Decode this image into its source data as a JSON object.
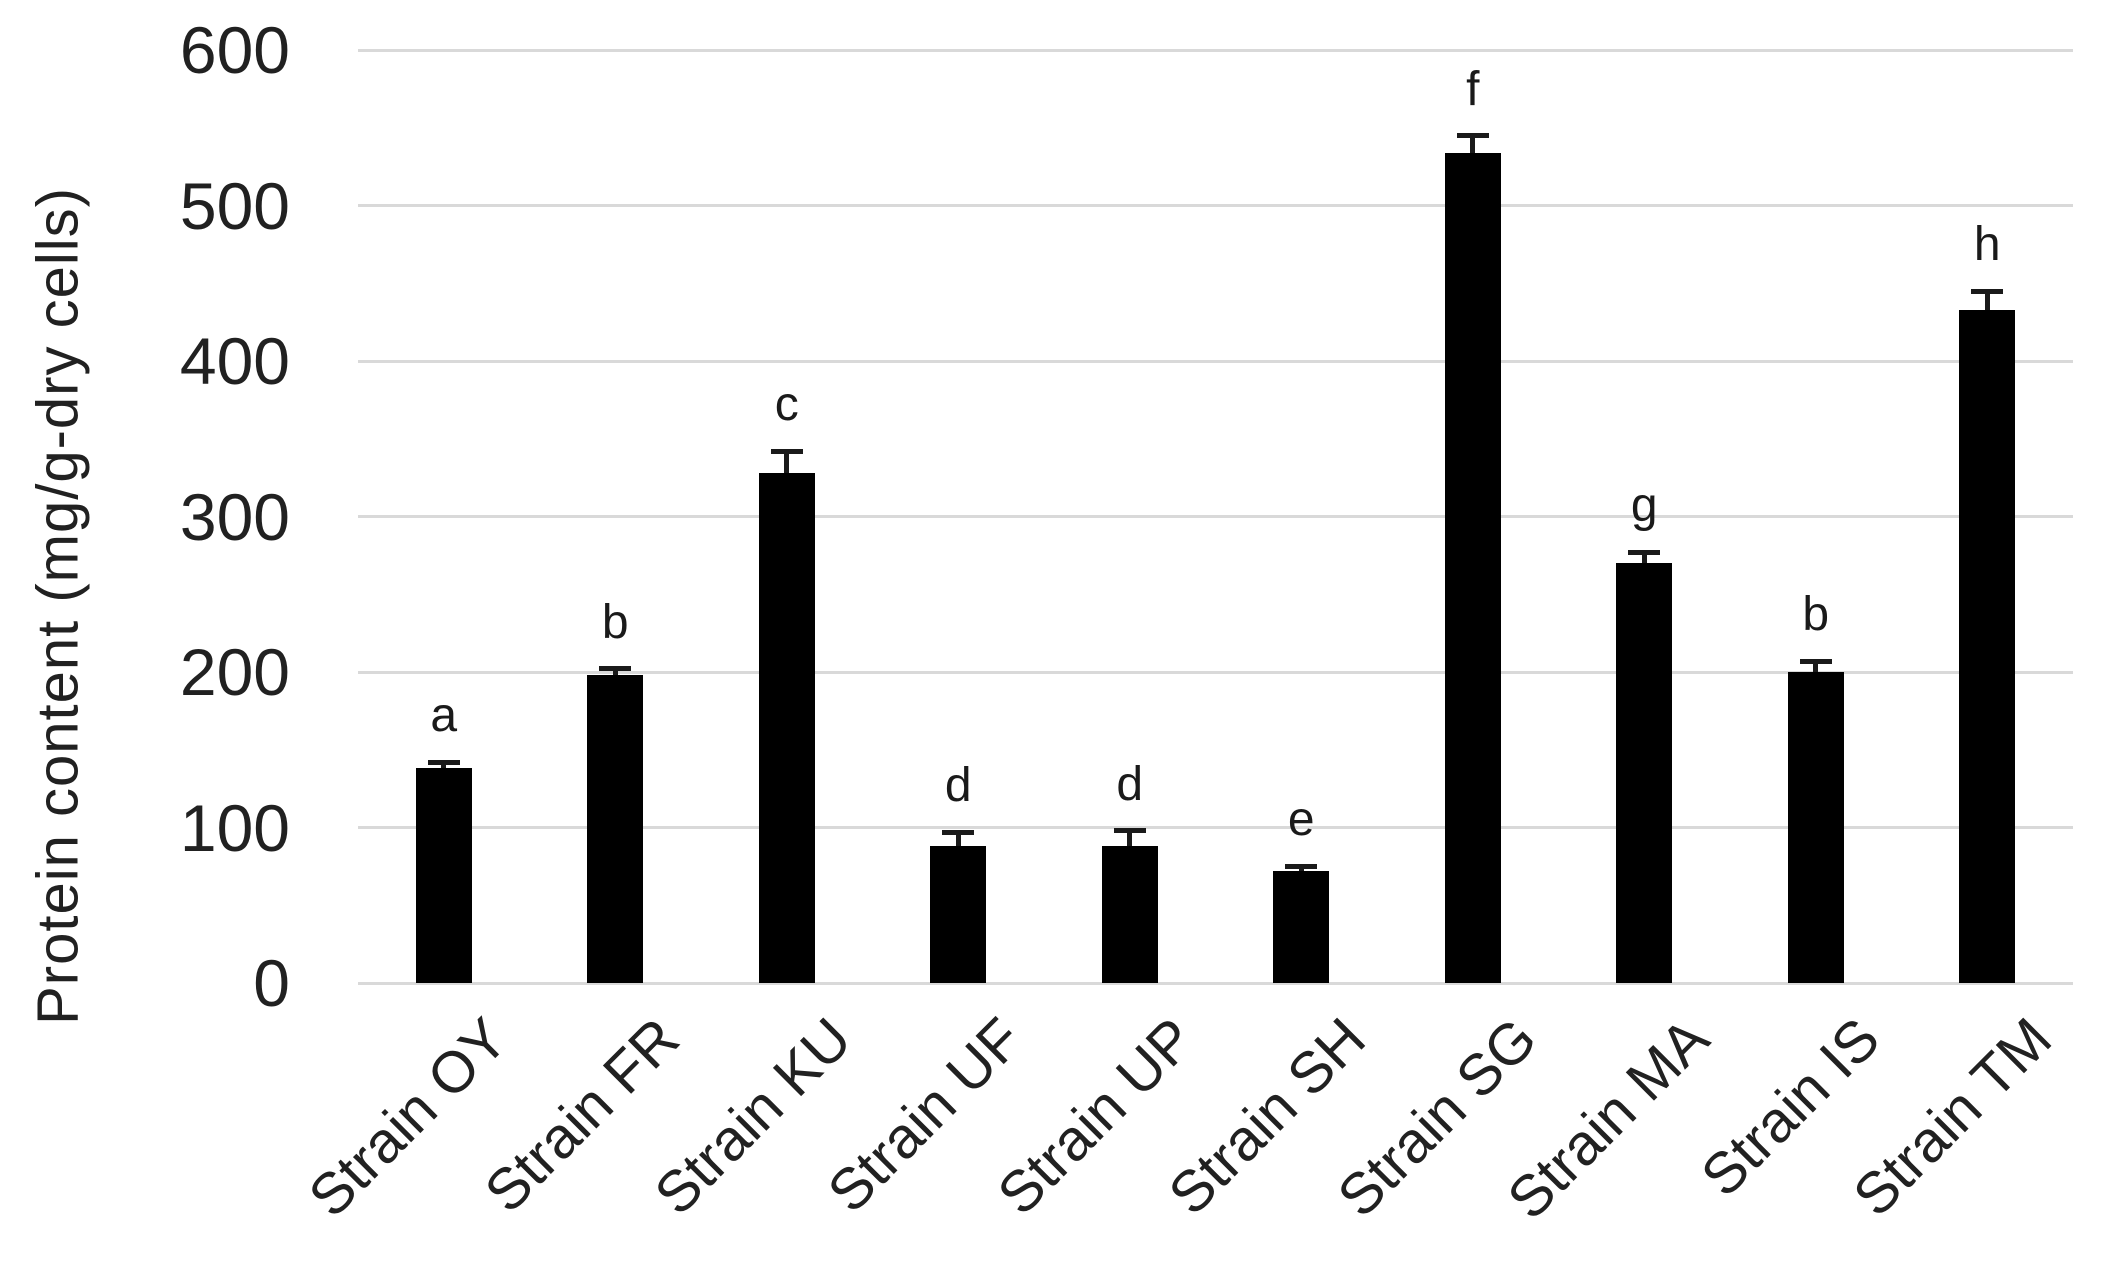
{
  "chart_data": {
    "type": "bar",
    "title": "",
    "xlabel": "",
    "ylabel": "Protein content (mg/g-dry cells)",
    "ylim": [
      0,
      600
    ],
    "yticks": [
      0,
      100,
      200,
      300,
      400,
      500,
      600
    ],
    "grid": true,
    "legend": "none",
    "bar_color": "#000000",
    "gridline_color": "#d9d9d9",
    "text_color": "#212121",
    "categories": [
      "Strain OY",
      "Strain FR",
      "Strain KU",
      "Strain UF",
      "Strain UP",
      "Strain SH",
      "Strain SG",
      "Strain MA",
      "Strain IS",
      "Strain TM"
    ],
    "values": [
      138,
      198,
      328,
      88,
      88,
      72,
      534,
      270,
      200,
      433
    ],
    "errors": [
      4,
      4,
      14,
      9,
      10,
      3,
      11,
      7,
      7,
      12
    ],
    "sig_letters": [
      "a",
      "b",
      "c",
      "d",
      "d",
      "e",
      "f",
      "g",
      "b",
      "h"
    ]
  }
}
